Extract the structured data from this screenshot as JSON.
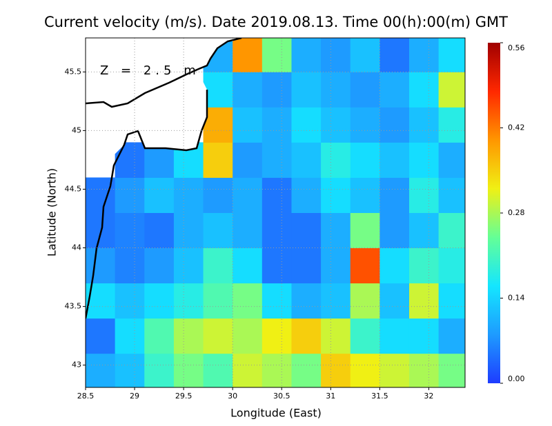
{
  "chart_data": {
    "type": "heatmap",
    "title": "Current velocity (m/s). Date 2019.08.13. Time 00(h):00(m) GMT",
    "x_label": "Longitude (East)",
    "y_label": "Latitude (North)",
    "annotation": "Z = 2.5 m",
    "xlim": [
      28.5,
      32.37
    ],
    "ylim": [
      42.81,
      45.79
    ],
    "xticks": [
      28.5,
      29,
      29.5,
      30,
      30.5,
      31,
      31.5,
      32
    ],
    "yticks": [
      43,
      43.5,
      44,
      44.5,
      45,
      45.5
    ],
    "grid": true,
    "x": [
      28.65,
      28.95,
      29.25,
      29.55,
      29.85,
      30.15,
      30.45,
      30.75,
      31.05,
      31.35,
      31.65,
      31.95,
      32.25
    ],
    "y": [
      42.95,
      43.25,
      43.55,
      43.85,
      44.15,
      44.45,
      44.75,
      45.05,
      45.35,
      45.65
    ],
    "values": [
      [
        0.1,
        0.12,
        0.2,
        0.25,
        0.22,
        0.3,
        0.28,
        0.25,
        0.35,
        0.32,
        0.3,
        0.28,
        0.25
      ],
      [
        0.05,
        0.15,
        0.22,
        0.28,
        0.3,
        0.28,
        0.32,
        0.35,
        0.3,
        0.2,
        0.15,
        0.15,
        0.1
      ],
      [
        0.15,
        0.12,
        0.15,
        0.18,
        0.22,
        0.25,
        0.15,
        0.1,
        0.12,
        0.28,
        0.12,
        0.3,
        0.15
      ],
      [
        0.08,
        0.06,
        0.08,
        0.12,
        0.2,
        0.15,
        0.05,
        0.05,
        0.1,
        0.45,
        0.15,
        0.2,
        0.18
      ],
      [
        0.05,
        0.06,
        0.05,
        0.1,
        0.12,
        0.1,
        0.05,
        0.05,
        0.1,
        0.25,
        0.08,
        0.12,
        0.2
      ],
      [
        0.05,
        0.08,
        0.12,
        0.1,
        0.08,
        0.1,
        0.05,
        0.1,
        0.15,
        0.12,
        0.08,
        0.18,
        0.12
      ],
      [
        null,
        0.05,
        0.08,
        0.15,
        0.35,
        0.08,
        0.1,
        0.12,
        0.18,
        0.15,
        0.12,
        0.15,
        0.1
      ],
      [
        null,
        null,
        null,
        null,
        0.38,
        0.12,
        0.1,
        0.15,
        0.12,
        0.1,
        0.08,
        0.12,
        0.18
      ],
      [
        null,
        null,
        null,
        null,
        0.15,
        0.1,
        0.08,
        0.12,
        0.1,
        0.08,
        0.1,
        0.15,
        0.3
      ],
      [
        null,
        null,
        null,
        null,
        0.1,
        0.4,
        0.25,
        0.1,
        0.08,
        0.12,
        0.05,
        0.1,
        0.15
      ]
    ],
    "clim": [
      0,
      0.56
    ],
    "colorbar_ticks": [
      {
        "value": 0,
        "label": "0.00"
      },
      0.14,
      0.28,
      0.42,
      0.56
    ],
    "colormap": [
      "#1e3cff",
      "#1e9bff",
      "#14e6ff",
      "#64ff96",
      "#f0f014",
      "#ff9600",
      "#ff2800",
      "#a00000"
    ]
  }
}
